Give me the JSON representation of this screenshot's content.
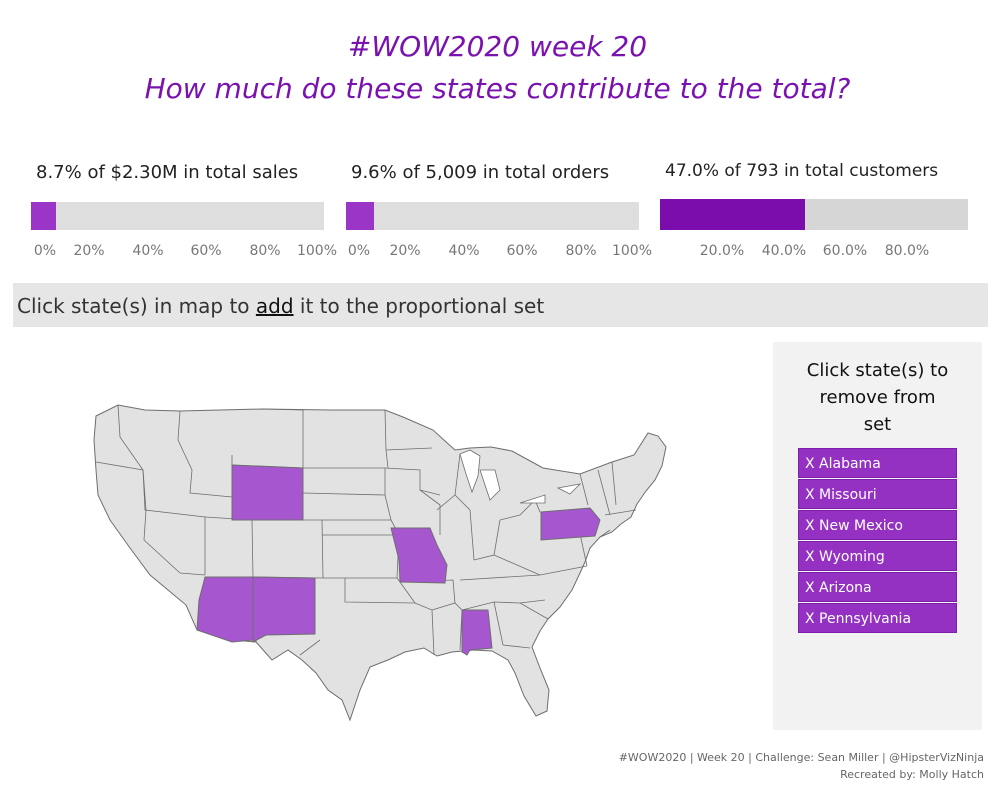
{
  "title": {
    "line1": "#WOW2020 week 20",
    "line2": "How much do these states contribute to the total?"
  },
  "kpis": [
    {
      "label": "8.7% of $2.30M in total sales",
      "percent": 8.7,
      "ticks": [
        "0%",
        "20%",
        "40%",
        "60%",
        "80%",
        "100%"
      ],
      "fill_color": "#9a35c8",
      "track_color": "#dedede"
    },
    {
      "label": "9.6% of 5,009 in total orders",
      "percent": 9.6,
      "ticks": [
        "0%",
        "20%",
        "40%",
        "60%",
        "80%",
        "100%"
      ],
      "fill_color": "#9a35c8",
      "track_color": "#dedede"
    },
    {
      "label": "47.0% of 793 in total customers",
      "percent": 47.0,
      "ticks": [
        "20.0%",
        "40.0%",
        "60.0%",
        "80.0%"
      ],
      "fill_color": "#7a0dab",
      "track_color": "#d6d6d6"
    }
  ],
  "banner": {
    "prefix": "Click state(s) in map to ",
    "keyword": "add",
    "suffix": " it to the proportional set"
  },
  "map": {
    "selected_states": [
      "Alabama",
      "Missouri",
      "New Mexico",
      "Wyoming",
      "Arizona",
      "Pennsylvania"
    ],
    "selected_color": "#a657cf",
    "default_color": "#e2e2e2",
    "border_color": "#6e6e6e"
  },
  "set_panel": {
    "title_line1": "Click state(s) to",
    "title_line2": "remove from",
    "title_line3": "set",
    "items": [
      "X Alabama",
      "X Missouri",
      "X New Mexico",
      "X Wyoming",
      "X Arizona",
      "X Pennsylvania"
    ]
  },
  "footer": {
    "line1": "#WOW2020 | Week 20 | Challenge: Sean Miller | @HipsterVizNinja",
    "line2": "Recreated by: Molly Hatch"
  }
}
